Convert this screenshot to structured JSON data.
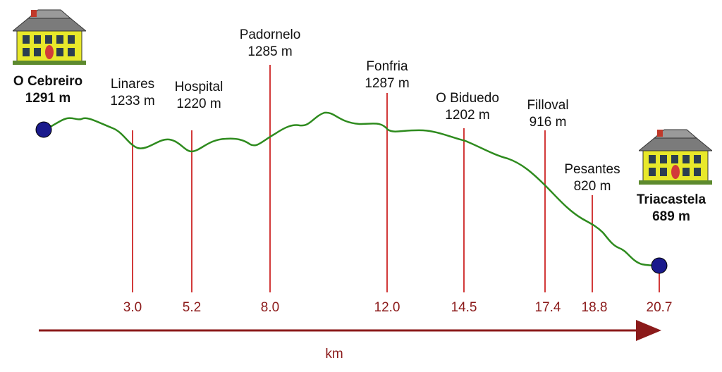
{
  "axis": {
    "unit": "km"
  },
  "colors": {
    "profile": "#2e8b1e",
    "marker": "#c0392b",
    "endpoint": "#1a1a8c",
    "axis": "#8b1a1a"
  },
  "start": {
    "name": "O Cebreiro",
    "elevation": "1291 m",
    "icon": "house-icon"
  },
  "end": {
    "name": "Triacastela",
    "elevation": "689 m",
    "icon": "house-icon"
  },
  "waypoints": [
    {
      "name": "Linares",
      "elevation": "1233 m",
      "km": "3.0"
    },
    {
      "name": "Hospital",
      "elevation": "1220 m",
      "km": "5.2"
    },
    {
      "name": "Padornelo",
      "elevation": "1285 m",
      "km": "8.0"
    },
    {
      "name": "Fonfria",
      "elevation": "1287 m",
      "km": "12.0"
    },
    {
      "name": "O Biduedo",
      "elevation": "1202 m",
      "km": "14.5"
    },
    {
      "name": "Filloval",
      "elevation": "916 m",
      "km": "17.4"
    },
    {
      "name": "Pesantes",
      "elevation": "820 m",
      "km": "18.8"
    }
  ],
  "end_km": "20.7"
}
